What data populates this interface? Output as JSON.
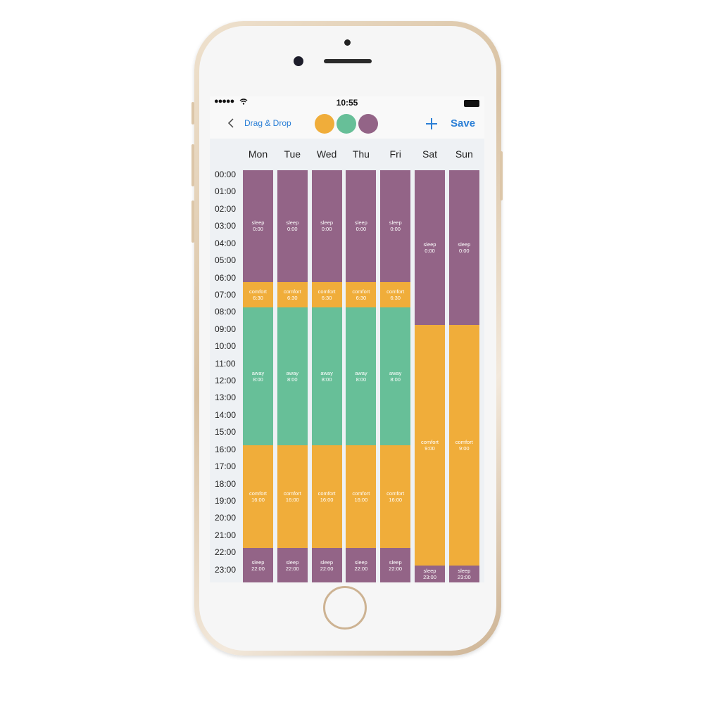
{
  "status_bar": {
    "time": "10:55"
  },
  "nav_bar": {
    "back": "Drag & Drop",
    "save": "Save"
  },
  "schedule": {
    "days": [
      {
        "name": "Mon",
        "blocks": [
          {
            "mode": "sleep",
            "time": "0:00",
            "color": "#936487"
          },
          {
            "mode": "comfort",
            "time": "6:30",
            "color": "#f0ad3a"
          },
          {
            "mode": "away",
            "time": "8:00",
            "color": "#67bf98"
          },
          {
            "mode": "comfort",
            "time": "16:00",
            "color": "#f0ad3a"
          },
          {
            "mode": "sleep",
            "time": "22:00",
            "color": "#936487"
          }
        ]
      },
      {
        "name": "Tue",
        "blocks": [
          {
            "mode": "sleep",
            "time": "0:00",
            "color": "#936487"
          },
          {
            "mode": "comfort",
            "time": "6:30",
            "color": "#f0ad3a"
          },
          {
            "mode": "away",
            "time": "8:00",
            "color": "#67bf98"
          },
          {
            "mode": "comfort",
            "time": "16:00",
            "color": "#f0ad3a"
          },
          {
            "mode": "sleep",
            "time": "22:00",
            "color": "#936487"
          }
        ]
      },
      {
        "name": "Wed",
        "blocks": [
          {
            "mode": "sleep",
            "time": "0:00",
            "color": "#936487"
          },
          {
            "mode": "comfort",
            "time": "6:30",
            "color": "#f0ad3a"
          },
          {
            "mode": "away",
            "time": "8:00",
            "color": "#67bf98"
          },
          {
            "mode": "comfort",
            "time": "16:00",
            "color": "#f0ad3a"
          },
          {
            "mode": "sleep",
            "time": "22:00",
            "color": "#936487"
          }
        ]
      },
      {
        "name": "Thu",
        "blocks": [
          {
            "mode": "sleep",
            "time": "0:00",
            "color": "#936487"
          },
          {
            "mode": "comfort",
            "time": "6:30",
            "color": "#f0ad3a"
          },
          {
            "mode": "away",
            "time": "8:00",
            "color": "#67bf98"
          },
          {
            "mode": "comfort",
            "time": "16:00",
            "color": "#f0ad3a"
          },
          {
            "mode": "sleep",
            "time": "22:00",
            "color": "#936487"
          }
        ]
      },
      {
        "name": "Fri",
        "blocks": [
          {
            "mode": "sleep",
            "time": "0:00",
            "color": "#936487"
          },
          {
            "mode": "comfort",
            "time": "6:30",
            "color": "#f0ad3a"
          },
          {
            "mode": "away",
            "time": "8:00",
            "color": "#67bf98"
          },
          {
            "mode": "comfort",
            "time": "16:00",
            "color": "#f0ad3a"
          },
          {
            "mode": "sleep",
            "time": "22:00",
            "color": "#936487"
          }
        ]
      },
      {
        "name": "Sat",
        "blocks": [
          {
            "mode": "sleep",
            "time": "0:00",
            "color": "#936487"
          },
          {
            "mode": "comfort",
            "time": "9:00",
            "color": "#f0ad3a"
          },
          {
            "mode": "sleep",
            "time": "23:00",
            "color": "#936487"
          }
        ]
      },
      {
        "name": "Sun",
        "blocks": [
          {
            "mode": "sleep",
            "time": "0:00",
            "color": "#936487"
          },
          {
            "mode": "comfort",
            "time": "9:00",
            "color": "#f0ad3a"
          },
          {
            "mode": "sleep",
            "time": "23:00",
            "color": "#936487"
          }
        ]
      }
    ],
    "hours": [
      "00:00",
      "01:00",
      "02:00",
      "03:00",
      "04:00",
      "05:00",
      "06:00",
      "07:00",
      "08:00",
      "09:00",
      "10:00",
      "11:00",
      "12:00",
      "13:00",
      "14:00",
      "15:00",
      "16:00",
      "17:00",
      "18:00",
      "19:00",
      "20:00",
      "21:00",
      "22:00",
      "23:00"
    ]
  }
}
